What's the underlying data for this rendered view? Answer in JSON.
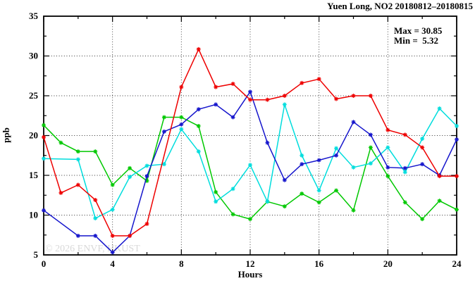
{
  "page": {
    "background": "#ffffff"
  },
  "chart_data": {
    "type": "line",
    "title": "Yuen Long, NO2 20180812–20180815",
    "xlabel": "Hours",
    "ylabel": "ppb",
    "xlim": [
      0,
      24
    ],
    "ylim": [
      5,
      35
    ],
    "xticks": [
      0,
      4,
      8,
      12,
      16,
      20,
      24
    ],
    "yticks": [
      5,
      10,
      15,
      20,
      25,
      30,
      35
    ],
    "x_minor_step": 2,
    "y_minor_step": 2.5,
    "grid": {
      "style": "dotted",
      "x_at": [
        4,
        8,
        12,
        16,
        20
      ],
      "y_at": [
        10,
        15,
        20,
        25,
        30
      ]
    },
    "legend": "none",
    "annotations": {
      "max_label": "Max = 30.85",
      "min_label": "Min =  5.32"
    },
    "watermark": "© 2026 ENVF, HKUST",
    "x": [
      0,
      1,
      2,
      3,
      4,
      5,
      6,
      7,
      8,
      9,
      10,
      11,
      12,
      13,
      14,
      15,
      16,
      17,
      18,
      19,
      20,
      21,
      22,
      23,
      24
    ],
    "series": [
      {
        "name": "series-green",
        "color": "#00c800",
        "values": [
          21.3,
          19.1,
          18.0,
          18.0,
          13.8,
          15.9,
          14.3,
          22.3,
          22.3,
          21.2,
          12.9,
          10.1,
          9.5,
          11.7,
          11.1,
          12.7,
          11.6,
          13.1,
          10.6,
          18.5,
          14.9,
          11.6,
          9.5,
          11.8,
          10.7
        ]
      },
      {
        "name": "series-cyan",
        "color": "#00dddd",
        "values": [
          17.1,
          null,
          17.0,
          9.6,
          10.7,
          14.8,
          16.2,
          16.4,
          20.8,
          18.0,
          11.7,
          13.3,
          16.3,
          11.7,
          23.9,
          17.5,
          13.1,
          18.4,
          16.0,
          16.5,
          18.5,
          15.4,
          19.6,
          23.4,
          21.2
        ]
      },
      {
        "name": "series-blue",
        "color": "#1515cc",
        "values": [
          10.6,
          null,
          7.4,
          7.4,
          5.32,
          7.4,
          14.9,
          20.5,
          21.4,
          23.3,
          23.9,
          22.3,
          25.5,
          19.1,
          14.4,
          16.4,
          16.9,
          17.5,
          21.7,
          20.1,
          16.0,
          15.9,
          16.4,
          15.0,
          19.5
        ]
      },
      {
        "name": "series-red",
        "color": "#ee0000",
        "values": [
          19.8,
          12.8,
          13.8,
          11.9,
          7.4,
          7.4,
          8.9,
          null,
          26.1,
          30.85,
          26.1,
          26.5,
          24.5,
          24.5,
          25.0,
          26.6,
          27.1,
          24.6,
          25.0,
          25.0,
          20.7,
          20.1,
          18.5,
          14.9,
          14.9
        ]
      }
    ]
  }
}
